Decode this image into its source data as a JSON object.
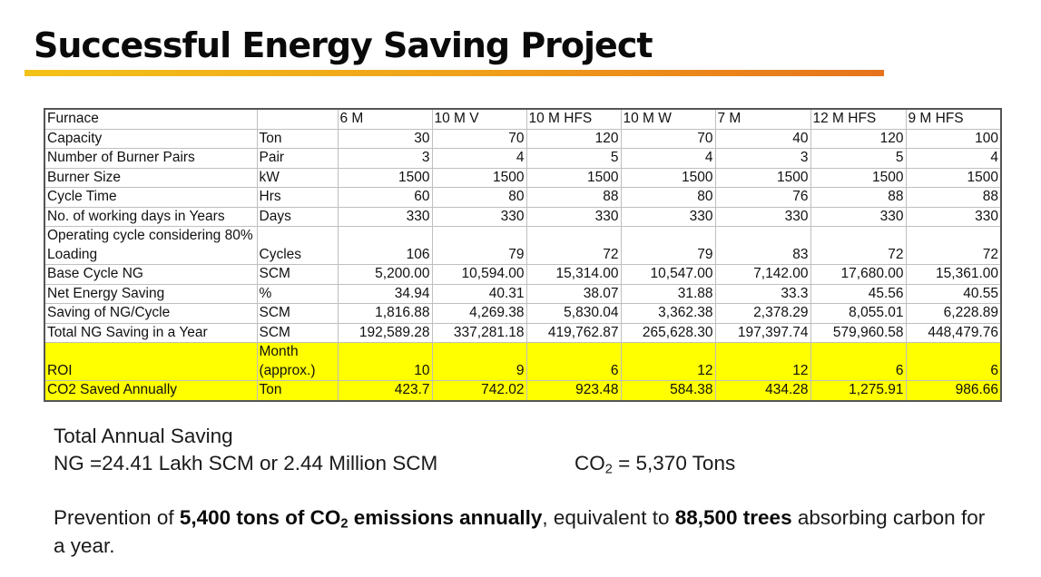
{
  "title": "Successful Energy Saving Project",
  "accent_colors": {
    "bar_start": "#f3c21a",
    "bar_end": "#e6731c",
    "highlight": "#ffff00"
  },
  "table": {
    "header_label": "Furnace",
    "columns": [
      "6 M",
      "10 M V",
      "10 M HFS",
      "10 M W",
      "7 M",
      "12 M HFS",
      "9 M HFS"
    ],
    "rows": [
      {
        "label": "Capacity",
        "unit": "Ton",
        "values": [
          "30",
          "70",
          "120",
          "70",
          "40",
          "120",
          "100"
        ]
      },
      {
        "label": "Number of Burner Pairs",
        "unit": "Pair",
        "values": [
          "3",
          "4",
          "5",
          "4",
          "3",
          "5",
          "4"
        ]
      },
      {
        "label": "Burner Size",
        "unit": "kW",
        "values": [
          "1500",
          "1500",
          "1500",
          "1500",
          "1500",
          "1500",
          "1500"
        ]
      },
      {
        "label": "Cycle Time",
        "unit": "Hrs",
        "values": [
          "60",
          "80",
          "88",
          "80",
          "76",
          "88",
          "88"
        ]
      },
      {
        "label": "No. of working days in Years",
        "unit": "Days",
        "values": [
          "330",
          "330",
          "330",
          "330",
          "330",
          "330",
          "330"
        ]
      },
      {
        "label": "Operating cycle considering 80% Loading",
        "unit": "Cycles",
        "values": [
          "106",
          "79",
          "72",
          "79",
          "83",
          "72",
          "72"
        ]
      },
      {
        "label": "Base Cycle NG",
        "unit": "SCM",
        "values": [
          "5,200.00",
          "10,594.00",
          "15,314.00",
          "10,547.00",
          "7,142.00",
          "17,680.00",
          "15,361.00"
        ]
      },
      {
        "label": "Net Energy Saving",
        "unit": "%",
        "values": [
          "34.94",
          "40.31",
          "38.07",
          "31.88",
          "33.3",
          "45.56",
          "40.55"
        ]
      },
      {
        "label": "Saving of NG/Cycle",
        "unit": "SCM",
        "values": [
          "1,816.88",
          "4,269.38",
          "5,830.04",
          "3,362.38",
          "2,378.29",
          "8,055.01",
          "6,228.89"
        ]
      },
      {
        "label": "Total NG Saving in a Year",
        "unit": "SCM",
        "values": [
          "192,589.28",
          "337,281.18",
          "419,762.87",
          "265,628.30",
          "197,397.74",
          "579,960.58",
          "448,479.76"
        ]
      },
      {
        "label": "ROI",
        "unit": "Month (approx.)",
        "values": [
          "10",
          "9",
          "6",
          "12",
          "12",
          "6",
          "6"
        ],
        "highlight": true
      },
      {
        "label": "CO2 Saved Annually",
        "unit": "Ton",
        "values": [
          "423.7",
          "742.02",
          "923.48",
          "584.38",
          "434.28",
          "1,275.91",
          "986.66"
        ],
        "highlight": true
      }
    ]
  },
  "summary": {
    "heading": "Total Annual Saving",
    "ng_line": "NG =24.41 Lakh SCM or 2.44 Million SCM",
    "co2_prefix": "CO",
    "co2_sub": "2",
    "co2_value": " = 5,370 Tons"
  },
  "prevention": {
    "p1": "Prevention of ",
    "b1": "5,400 tons of CO",
    "b1_sub": "2",
    "b2": " emissions annually",
    "p2": ", equivalent to ",
    "b3": "88,500 trees",
    "p3": " absorbing carbon for a year."
  }
}
